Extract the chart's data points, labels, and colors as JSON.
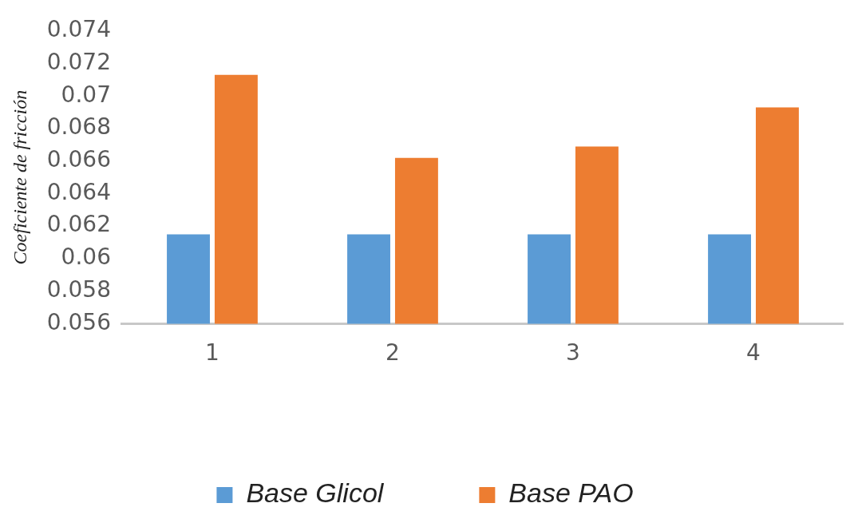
{
  "chart_data": {
    "type": "bar",
    "ylabel": "Coeficiente de fricción",
    "categories": [
      "1",
      "2",
      "3",
      "4"
    ],
    "series": [
      {
        "name": "Base Glicol",
        "color": "#5b9bd5",
        "values": [
          0.0615,
          0.0615,
          0.0615,
          0.0615
        ]
      },
      {
        "name": "Base PAO",
        "color": "#ed7d31",
        "values": [
          0.0713,
          0.0662,
          0.0669,
          0.0693
        ]
      }
    ],
    "ylim": [
      0.056,
      0.074
    ],
    "yticks": [
      {
        "value": 0.056,
        "label": "0.056"
      },
      {
        "value": 0.058,
        "label": "0.058"
      },
      {
        "value": 0.06,
        "label": "0.06"
      },
      {
        "value": 0.062,
        "label": "0.062"
      },
      {
        "value": 0.064,
        "label": "0.064"
      },
      {
        "value": 0.066,
        "label": "0.066"
      },
      {
        "value": 0.068,
        "label": "0.068"
      },
      {
        "value": 0.07,
        "label": "0.07"
      },
      {
        "value": 0.072,
        "label": "0.072"
      },
      {
        "value": 0.074,
        "label": "0.074"
      }
    ],
    "grid": false,
    "legend": "bottom"
  }
}
